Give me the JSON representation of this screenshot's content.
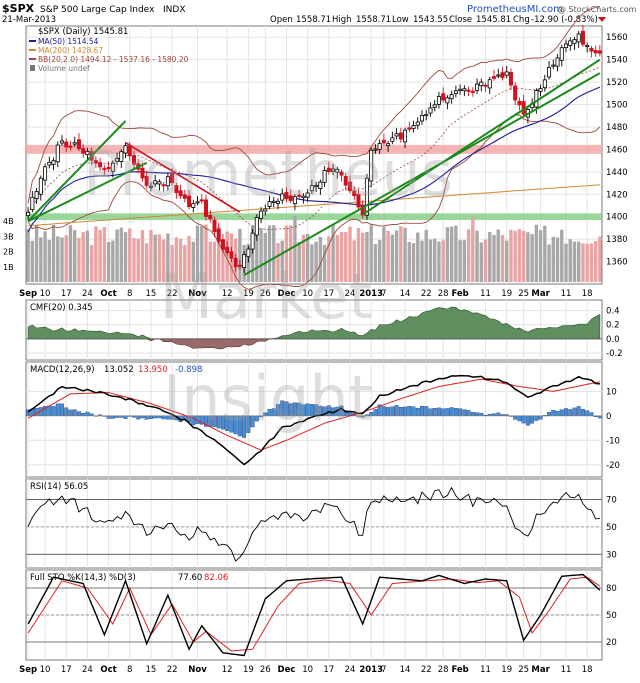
{
  "header": {
    "symbol": "$SPX",
    "name": "S&P 500 Large Cap Index",
    "exchange": "INDX",
    "date": "21-Mar-2013",
    "open_label": "Open",
    "open": "1558.71",
    "high_label": "High",
    "high": "1558.71",
    "low_label": "Low",
    "low": "1543.55",
    "close_label": "Close",
    "close": "1545.81",
    "chg_label": "Chg",
    "chg": "-12.90 (-0.83%)",
    "site": "PrometheusMI.com",
    "credit": "@ StockCharts.com"
  },
  "watermark": [
    "Prometheus",
    "Market",
    "Insight"
  ],
  "colors": {
    "up": "#000000",
    "down": "#d0101e",
    "ma50": "#1c1c9c",
    "ma200": "#d08a30",
    "bb": "#9c4a3a",
    "trend": "#1a8a1a",
    "pink_band": "#f4a8a8",
    "green_band": "#8ad08a",
    "cmf_pos": "#5f8f5f",
    "cmf_neg": "#9a6a6a",
    "macd_hist": "#4a8ed0",
    "signal": "#e02020"
  },
  "chart_data": [
    {
      "panel": "price",
      "type": "candlestick",
      "legend": [
        {
          "text": "$SPX (Daily) 1545.81",
          "color": "#000000"
        },
        {
          "text": "MA(50) 1514.54",
          "color": "#1c1c9c"
        },
        {
          "text": "MA(200) 1428.67",
          "color": "#d08a30"
        },
        {
          "text": "BB(20,2.0) 1494.12 - 1537.16 - 1580.20",
          "color": "#9c4a3a"
        },
        {
          "text": "Volume undef",
          "color": "#777777"
        }
      ],
      "ylim": [
        1340,
        1570
      ],
      "yticks": [
        1360,
        1380,
        1400,
        1420,
        1440,
        1460,
        1480,
        1500,
        1520,
        1540,
        1560
      ],
      "volume_ticks": [
        "1B",
        "2B",
        "3B",
        "4B"
      ],
      "x_labels": [
        "Sep",
        "10",
        "17",
        "24",
        "Oct",
        "8",
        "15",
        "22",
        "Nov",
        "12",
        "19",
        "26",
        "Dec",
        "10",
        "17",
        "24",
        "2013",
        "7",
        "14",
        "22",
        "28",
        "Feb",
        "11",
        "19",
        "25",
        "Mar",
        "11",
        "18"
      ],
      "horizontal_bands": [
        {
          "low": 1456,
          "high": 1464,
          "color": "pink"
        },
        {
          "low": 1397,
          "high": 1403,
          "color": "green"
        }
      ],
      "close_keyframes": [
        [
          "2012-09-04",
          1404
        ],
        [
          "2012-09-07",
          1437
        ],
        [
          "2012-09-14",
          1466
        ],
        [
          "2012-09-21",
          1460
        ],
        [
          "2012-09-28",
          1441
        ],
        [
          "2012-10-05",
          1461
        ],
        [
          "2012-10-12",
          1428
        ],
        [
          "2012-10-19",
          1433
        ],
        [
          "2012-10-26",
          1411
        ],
        [
          "2012-11-02",
          1414
        ],
        [
          "2012-11-08",
          1377
        ],
        [
          "2012-11-15",
          1353
        ],
        [
          "2012-11-23",
          1409
        ],
        [
          "2012-11-30",
          1416
        ],
        [
          "2012-12-07",
          1418
        ],
        [
          "2012-12-18",
          1446
        ],
        [
          "2012-12-28",
          1402
        ],
        [
          "2013-01-02",
          1462
        ],
        [
          "2013-01-11",
          1472
        ],
        [
          "2013-01-25",
          1503
        ],
        [
          "2013-02-01",
          1513
        ],
        [
          "2013-02-11",
          1518
        ],
        [
          "2013-02-19",
          1530
        ],
        [
          "2013-02-25",
          1488
        ],
        [
          "2013-03-01",
          1518
        ],
        [
          "2013-03-08",
          1551
        ],
        [
          "2013-03-14",
          1563
        ],
        [
          "2013-03-19",
          1548
        ],
        [
          "2013-03-21",
          1545.81
        ]
      ]
    },
    {
      "panel": "cmf",
      "type": "area",
      "label": "CMF(20) 0.345",
      "ylim": [
        -0.3,
        0.55
      ],
      "yticks": [
        -0.2,
        0.0,
        0.2,
        0.4
      ],
      "keyframes": [
        [
          "2012-09-04",
          0.17
        ],
        [
          "2012-09-14",
          0.13
        ],
        [
          "2012-09-28",
          0.1
        ],
        [
          "2012-10-08",
          0.06
        ],
        [
          "2012-10-19",
          -0.05
        ],
        [
          "2012-10-26",
          -0.12
        ],
        [
          "2012-11-08",
          -0.13
        ],
        [
          "2012-11-15",
          -0.11
        ],
        [
          "2012-11-23",
          -0.04
        ],
        [
          "2012-11-30",
          0.05
        ],
        [
          "2012-12-10",
          0.1
        ],
        [
          "2012-12-20",
          0.13
        ],
        [
          "2012-12-28",
          0.05
        ],
        [
          "2013-01-04",
          0.18
        ],
        [
          "2013-01-15",
          0.3
        ],
        [
          "2013-01-25",
          0.45
        ],
        [
          "2013-02-01",
          0.43
        ],
        [
          "2013-02-11",
          0.32
        ],
        [
          "2013-02-19",
          0.2
        ],
        [
          "2013-02-26",
          0.1
        ],
        [
          "2013-03-04",
          0.15
        ],
        [
          "2013-03-12",
          0.2
        ],
        [
          "2013-03-18",
          0.22
        ],
        [
          "2013-03-21",
          0.345
        ]
      ]
    },
    {
      "panel": "macd",
      "type": "line",
      "label": "MACD(12,26,9)",
      "macd_value": "13.052",
      "signal_value": "13.950",
      "hist_value": "-0.898",
      "ylim": [
        -25,
        22
      ],
      "yticks": [
        -20,
        -10,
        0,
        10
      ],
      "macd_keyframes": [
        [
          "2012-09-04",
          1.5
        ],
        [
          "2012-09-14",
          12.0
        ],
        [
          "2012-09-28",
          9.0
        ],
        [
          "2012-10-08",
          6.5
        ],
        [
          "2012-10-19",
          1.5
        ],
        [
          "2012-10-26",
          -3.0
        ],
        [
          "2012-11-08",
          -11.0
        ],
        [
          "2012-11-16",
          -20.0
        ],
        [
          "2012-11-23",
          -14.0
        ],
        [
          "2012-11-30",
          -5.0
        ],
        [
          "2012-12-10",
          -1.0
        ],
        [
          "2012-12-20",
          2.5
        ],
        [
          "2012-12-28",
          1.0
        ],
        [
          "2013-01-04",
          8.0
        ],
        [
          "2013-01-18",
          13.5
        ],
        [
          "2013-02-01",
          16.5
        ],
        [
          "2013-02-15",
          14.5
        ],
        [
          "2013-02-26",
          7.5
        ],
        [
          "2013-03-06",
          12.0
        ],
        [
          "2013-03-14",
          16.0
        ],
        [
          "2013-03-21",
          13.052
        ]
      ],
      "signal_keyframes": [
        [
          "2012-09-04",
          -1.0
        ],
        [
          "2012-09-18",
          9.0
        ],
        [
          "2012-10-01",
          9.5
        ],
        [
          "2012-10-15",
          5.0
        ],
        [
          "2012-10-29",
          -1.0
        ],
        [
          "2012-11-12",
          -8.0
        ],
        [
          "2012-11-23",
          -14.0
        ],
        [
          "2012-12-03",
          -10.0
        ],
        [
          "2012-12-14",
          -3.0
        ],
        [
          "2012-12-28",
          1.5
        ],
        [
          "2013-01-11",
          7.0
        ],
        [
          "2013-01-25",
          12.0
        ],
        [
          "2013-02-08",
          15.0
        ],
        [
          "2013-02-22",
          12.0
        ],
        [
          "2013-03-06",
          10.0
        ],
        [
          "2013-03-21",
          13.95
        ]
      ]
    },
    {
      "panel": "rsi",
      "type": "line",
      "label": "RSI(14) 56.05",
      "ylim": [
        20,
        85
      ],
      "yticks": [
        30,
        50,
        70
      ],
      "keyframes": [
        [
          "2012-09-04",
          49
        ],
        [
          "2012-09-07",
          66
        ],
        [
          "2012-09-14",
          72
        ],
        [
          "2012-09-21",
          63
        ],
        [
          "2012-09-28",
          52
        ],
        [
          "2012-10-05",
          62
        ],
        [
          "2012-10-12",
          44
        ],
        [
          "2012-10-19",
          52
        ],
        [
          "2012-10-26",
          42
        ],
        [
          "2012-11-02",
          48
        ],
        [
          "2012-11-09",
          36
        ],
        [
          "2012-11-15",
          28
        ],
        [
          "2012-11-23",
          56
        ],
        [
          "2012-11-30",
          58
        ],
        [
          "2012-12-07",
          57
        ],
        [
          "2012-12-18",
          66
        ],
        [
          "2012-12-28",
          44
        ],
        [
          "2013-01-02",
          70
        ],
        [
          "2013-01-11",
          68
        ],
        [
          "2013-01-25",
          76
        ],
        [
          "2013-02-01",
          72
        ],
        [
          "2013-02-11",
          68
        ],
        [
          "2013-02-19",
          65
        ],
        [
          "2013-02-25",
          43
        ],
        [
          "2013-03-01",
          60
        ],
        [
          "2013-03-08",
          73
        ],
        [
          "2013-03-14",
          74
        ],
        [
          "2013-03-19",
          60
        ],
        [
          "2013-03-21",
          56.05
        ]
      ]
    },
    {
      "panel": "sto",
      "type": "line",
      "label": "Full STO %K(14,3) %D(3)",
      "k_value": "77.60",
      "d_value": "82.06",
      "ylim": [
        0,
        100
      ],
      "yticks": [
        20,
        50,
        80
      ],
      "k_keyframes": [
        [
          "2012-09-04",
          40
        ],
        [
          "2012-09-12",
          92
        ],
        [
          "2012-09-21",
          85
        ],
        [
          "2012-09-28",
          28
        ],
        [
          "2012-10-05",
          88
        ],
        [
          "2012-10-12",
          18
        ],
        [
          "2012-10-19",
          72
        ],
        [
          "2012-10-26",
          12
        ],
        [
          "2012-11-02",
          38
        ],
        [
          "2012-11-09",
          8
        ],
        [
          "2012-11-16",
          5
        ],
        [
          "2012-11-26",
          68
        ],
        [
          "2012-12-03",
          88
        ],
        [
          "2012-12-10",
          90
        ],
        [
          "2012-12-20",
          92
        ],
        [
          "2012-12-28",
          40
        ],
        [
          "2013-01-04",
          92
        ],
        [
          "2013-01-18",
          88
        ],
        [
          "2013-01-25",
          94
        ],
        [
          "2013-02-04",
          85
        ],
        [
          "2013-02-11",
          90
        ],
        [
          "2013-02-19",
          88
        ],
        [
          "2013-02-25",
          22
        ],
        [
          "2013-03-01",
          50
        ],
        [
          "2013-03-08",
          93
        ],
        [
          "2013-03-15",
          95
        ],
        [
          "2013-03-21",
          77.6
        ]
      ],
      "d_keyframes": [
        [
          "2012-09-04",
          30
        ],
        [
          "2012-09-14",
          88
        ],
        [
          "2012-09-24",
          80
        ],
        [
          "2012-10-02",
          40
        ],
        [
          "2012-10-08",
          80
        ],
        [
          "2012-10-15",
          28
        ],
        [
          "2012-10-22",
          62
        ],
        [
          "2012-10-29",
          20
        ],
        [
          "2012-11-05",
          32
        ],
        [
          "2012-11-13",
          10
        ],
        [
          "2012-11-20",
          12
        ],
        [
          "2012-11-29",
          60
        ],
        [
          "2012-12-06",
          85
        ],
        [
          "2012-12-14",
          89
        ],
        [
          "2012-12-24",
          85
        ],
        [
          "2013-01-02",
          50
        ],
        [
          "2013-01-09",
          85
        ],
        [
          "2013-01-22",
          88
        ],
        [
          "2013-01-30",
          90
        ],
        [
          "2013-02-07",
          86
        ],
        [
          "2013-02-14",
          88
        ],
        [
          "2013-02-22",
          70
        ],
        [
          "2013-02-27",
          30
        ],
        [
          "2013-03-05",
          55
        ],
        [
          "2013-03-12",
          90
        ],
        [
          "2013-03-18",
          92
        ],
        [
          "2013-03-21",
          82.06
        ]
      ]
    }
  ]
}
